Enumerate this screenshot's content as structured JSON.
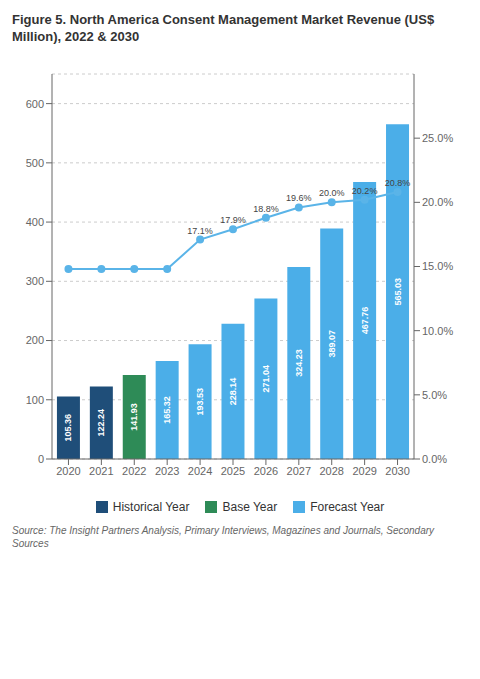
{
  "chart_data": {
    "type": "bar",
    "title": "Figure 5.    North America Consent Management Market Revenue (US$ Million), 2022 & 2030",
    "categories": [
      "2020",
      "2021",
      "2022",
      "2023",
      "2024",
      "2025",
      "2026",
      "2027",
      "2028",
      "2029",
      "2030"
    ],
    "stacked": true,
    "data_labels": true,
    "grid": true,
    "ylim": [
      0,
      650
    ],
    "yticks": [
      0,
      100,
      200,
      300,
      400,
      500,
      600
    ],
    "y2lim": [
      0,
      0.3
    ],
    "y2ticks": [
      {
        "value": 0,
        "label": "0.0%"
      },
      {
        "value": 0.05,
        "label": "5.0%"
      },
      {
        "value": 0.1,
        "label": "10.0%"
      },
      {
        "value": 0.15,
        "label": "15.0%"
      },
      {
        "value": 0.2,
        "label": "20.0%"
      },
      {
        "value": 0.25,
        "label": "25.0%"
      }
    ],
    "series": [
      {
        "name": "Historical Year",
        "color": "#1f4e79",
        "values": [
          105.36,
          122.24,
          null,
          null,
          null,
          null,
          null,
          null,
          null,
          null,
          null
        ]
      },
      {
        "name": "Base Year",
        "color": "#2e8b57",
        "values": [
          null,
          null,
          141.93,
          null,
          null,
          null,
          null,
          null,
          null,
          null,
          null
        ]
      },
      {
        "name": "Forecast Year",
        "color": "#4baee8",
        "values": [
          null,
          null,
          null,
          165.32,
          193.53,
          228.14,
          271.04,
          324.23,
          389.07,
          467.76,
          565.03
        ]
      },
      {
        "type": "line",
        "axis": "y2",
        "color": "#5ab4e8",
        "marker": "circle",
        "values": [
          0.148,
          0.148,
          0.148,
          0.148,
          0.171,
          0.179,
          0.188,
          0.196,
          0.2,
          0.202,
          0.208
        ],
        "value_labels": [
          null,
          null,
          null,
          null,
          "17.1%",
          "17.9%",
          "18.8%",
          "19.6%",
          "20.0%",
          "20.2%",
          "20.8%"
        ]
      }
    ],
    "annotations": [
      "Source: The Insight Partners Analysis, Primary Interviews, Magazines and Journals, Secondary Sources"
    ]
  }
}
